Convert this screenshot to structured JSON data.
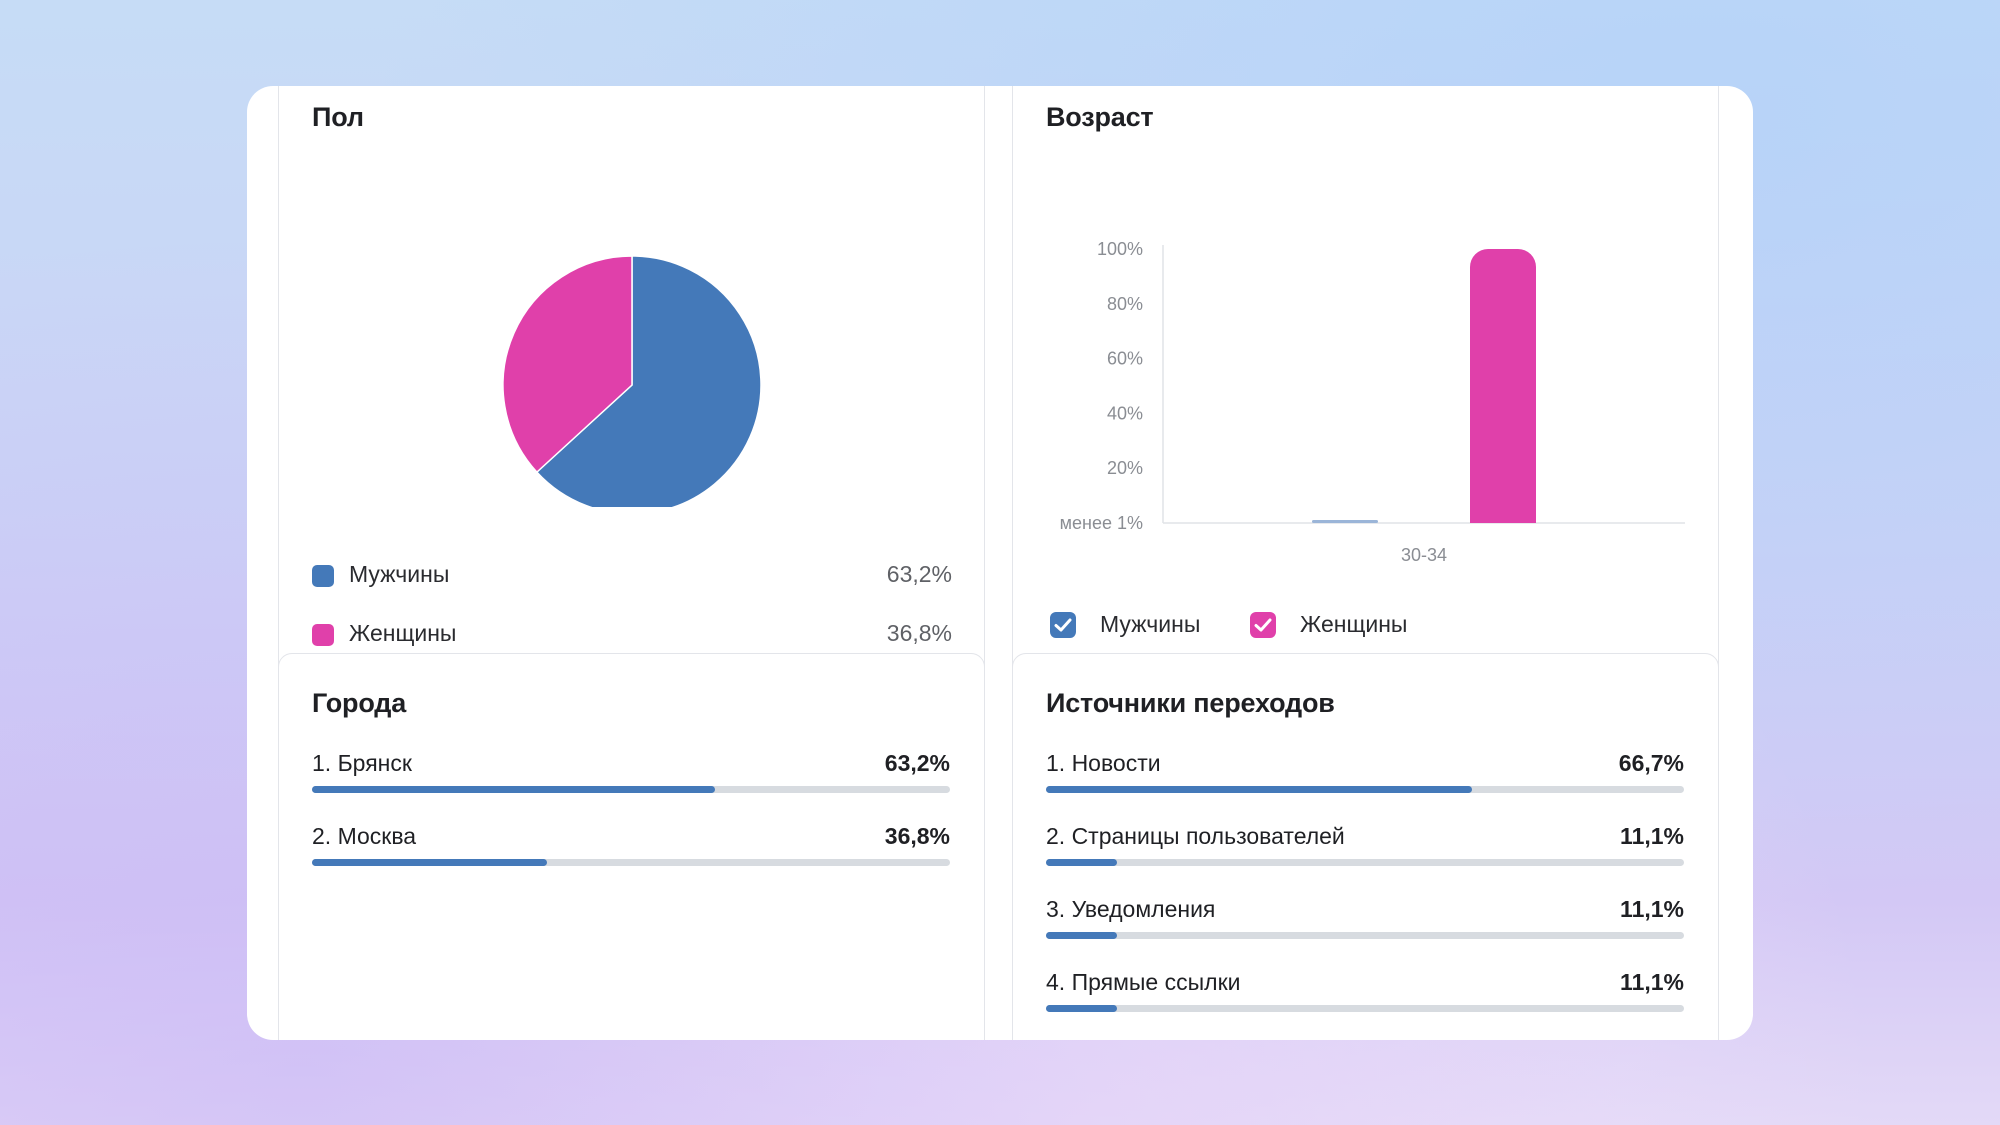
{
  "colors": {
    "male": "#4479b9",
    "female": "#e040aa",
    "track": "#d7dbe0"
  },
  "gender": {
    "title": "Пол",
    "legend": [
      {
        "label": "Мужчины",
        "value": "63,2%"
      },
      {
        "label": "Женщины",
        "value": "36,8%"
      }
    ]
  },
  "age": {
    "title": "Возраст",
    "legend": [
      {
        "label": "Мужчины",
        "checked": true
      },
      {
        "label": "Женщины",
        "checked": true
      }
    ]
  },
  "cities": {
    "title": "Города",
    "items": [
      {
        "label": "1. Брянск",
        "value": "63,2%",
        "fraction": 0.632
      },
      {
        "label": "2. Москва",
        "value": "36,8%",
        "fraction": 0.368
      }
    ]
  },
  "sources": {
    "title": "Источники переходов",
    "items": [
      {
        "label": "1. Новости",
        "value": "66,7%",
        "fraction": 0.667
      },
      {
        "label": "2. Страницы пользователей",
        "value": "11,1%",
        "fraction": 0.111
      },
      {
        "label": "3. Уведомления",
        "value": "11,1%",
        "fraction": 0.111
      },
      {
        "label": "4. Прямые ссылки",
        "value": "11,1%",
        "fraction": 0.111
      }
    ]
  },
  "chart_data": [
    {
      "type": "pie",
      "title": "Пол",
      "categories": [
        "Мужчины",
        "Женщины"
      ],
      "values": [
        63.2,
        36.8
      ],
      "legend": "bottom"
    },
    {
      "type": "bar",
      "title": "Возраст",
      "categories": [
        "30-34"
      ],
      "series": [
        {
          "name": "Мужчины",
          "values": [
            0.5
          ]
        },
        {
          "name": "Женщины",
          "values": [
            100
          ]
        }
      ],
      "yticks": [
        "менее 1%",
        "20%",
        "40%",
        "60%",
        "80%",
        "100%"
      ],
      "ylim": [
        0,
        100
      ],
      "grid": false,
      "legend": "bottom-left"
    }
  ]
}
